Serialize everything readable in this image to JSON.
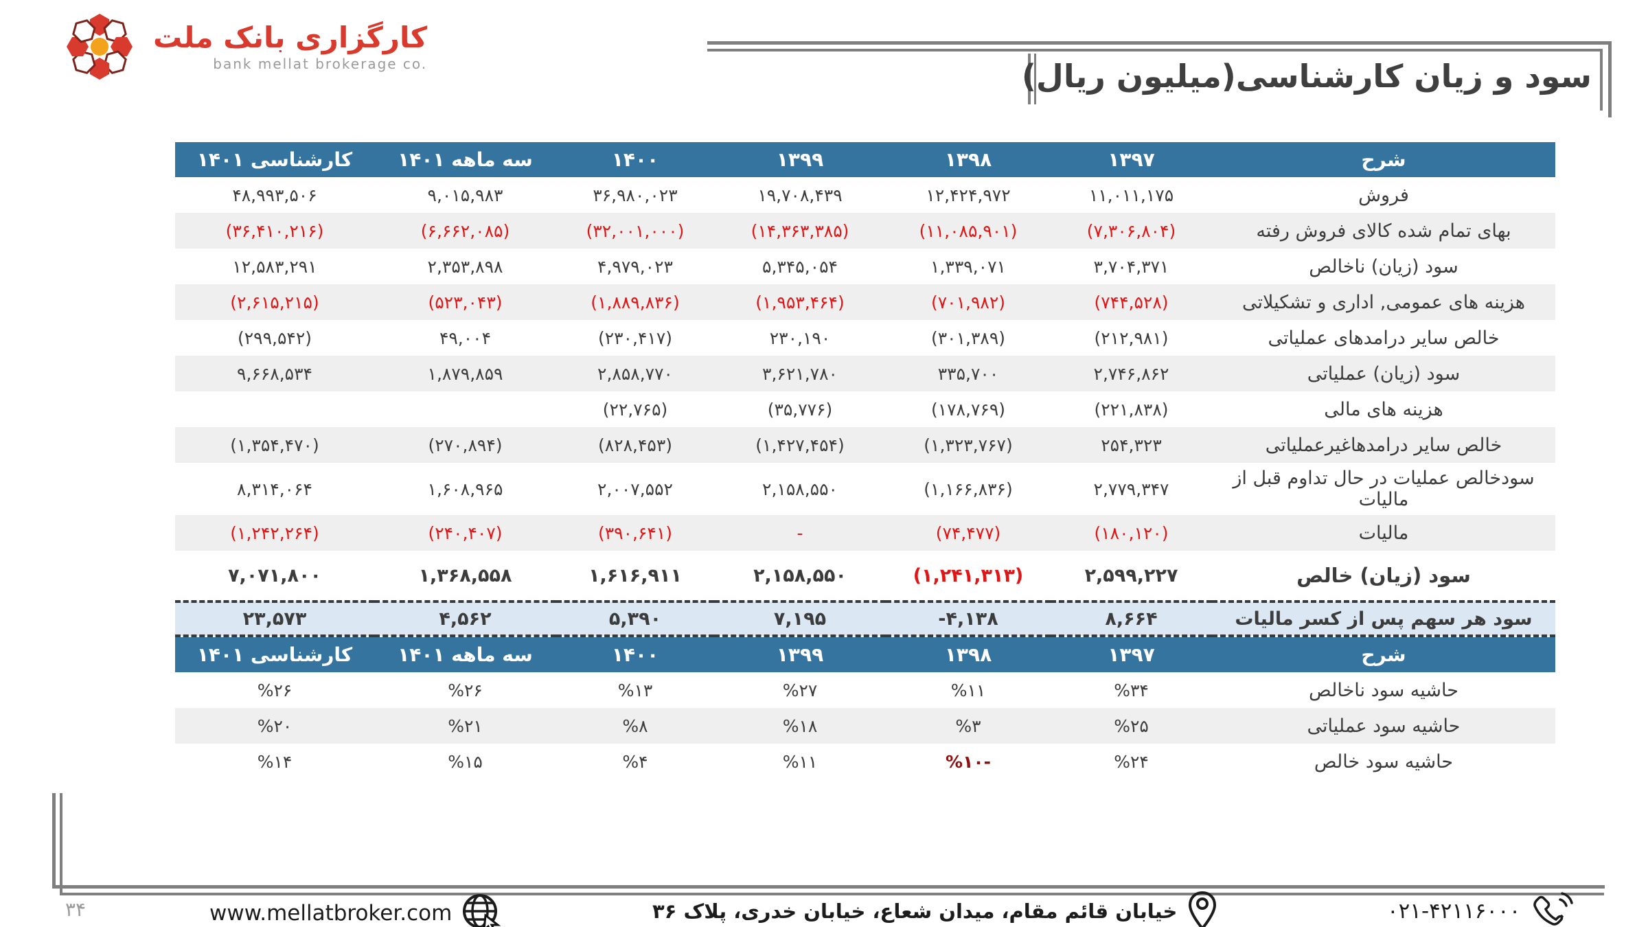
{
  "colors": {
    "header_bg": "#34749f",
    "stripe_bg": "#efefef",
    "eps_bg": "#dbe8f4",
    "red": "#e01515",
    "dark_red": "#8f1010",
    "frame_gray": "#7f7f7f",
    "brand_red": "#d93a2e",
    "logo_orange": "#f2a31b"
  },
  "header": {
    "logo_fa": "کارگزاری بانک ملت",
    "logo_en": "bank mellat brokerage co.",
    "title": "سود و زیان کارشناسی(میلیون ریال)"
  },
  "income_table": {
    "headers": [
      "شرح",
      "۱۳۹۷",
      "۱۳۹۸",
      "۱۳۹۹",
      "۱۴۰۰",
      "سه ماهه ۱۴۰۱",
      "کارشناسی ۱۴۰۱"
    ],
    "rows": [
      {
        "label": "فروش",
        "values": [
          "۱۱,۰۱۱,۱۷۵",
          "۱۲,۴۲۴,۹۷۲",
          "۱۹,۷۰۸,۴۳۹",
          "۳۶,۹۸۰,۰۲۳",
          "۹,۰۱۵,۹۸۳",
          "۴۸,۹۹۳,۵۰۶"
        ]
      },
      {
        "label": "بهای تمام شده کالای فروش رفته",
        "values": [
          "(۷,۳۰۶,۸۰۴)",
          "(۱۱,۰۸۵,۹۰۱)",
          "(۱۴,۳۶۳,۳۸۵)",
          "(۳۲,۰۰۱,۰۰۰)",
          "(۶,۶۶۲,۰۸۵)",
          "(۳۶,۴۱۰,۲۱۶)"
        ],
        "value_color": "red"
      },
      {
        "label": "سود (زیان) ناخالص",
        "values": [
          "۳,۷۰۴,۳۷۱",
          "۱,۳۳۹,۰۷۱",
          "۵,۳۴۵,۰۵۴",
          "۴,۹۷۹,۰۲۳",
          "۲,۳۵۳,۸۹۸",
          "۱۲,۵۸۳,۲۹۱"
        ]
      },
      {
        "label": "هزینه های عمومی, اداری و تشکیلاتی",
        "values": [
          "(۷۴۴,۵۲۸)",
          "(۷۰۱,۹۸۲)",
          "(۱,۹۵۳,۴۶۴)",
          "(۱,۸۸۹,۸۳۶)",
          "(۵۲۳,۰۴۳)",
          "(۲,۶۱۵,۲۱۵)"
        ],
        "value_color": "red"
      },
      {
        "label": "خالص سایر درامدهای  عملیاتی",
        "values": [
          "(۲۱۲,۹۸۱)",
          "(۳۰۱,۳۸۹)",
          "۲۳۰,۱۹۰",
          "(۲۳۰,۴۱۷)",
          "۴۹,۰۰۴",
          "(۲۹۹,۵۴۲)"
        ]
      },
      {
        "label": "سود (زیان) عملیاتی",
        "values": [
          "۲,۷۴۶,۸۶۲",
          "۳۳۵,۷۰۰",
          "۳,۶۲۱,۷۸۰",
          "۲,۸۵۸,۷۷۰",
          "۱,۸۷۹,۸۵۹",
          "۹,۶۶۸,۵۳۴"
        ]
      },
      {
        "label": "هزینه های مالی",
        "values": [
          "(۲۲۱,۸۳۸)",
          "(۱۷۸,۷۶۹)",
          "(۳۵,۷۷۶)",
          "(۲۲,۷۶۵)",
          "",
          ""
        ]
      },
      {
        "label": "خالص سایر درامدهاغیرعملیاتی",
        "values": [
          "۲۵۴,۳۲۳",
          "(۱,۳۲۳,۷۶۷)",
          "(۱,۴۲۷,۴۵۴)",
          "(۸۲۸,۴۵۳)",
          "(۲۷۰,۸۹۴)",
          "(۱,۳۵۴,۴۷۰)"
        ]
      },
      {
        "label": "سودخالص عملیات در حال تداوم قبل از مالیات",
        "values": [
          "۲,۷۷۹,۳۴۷",
          "(۱,۱۶۶,۸۳۶)",
          "۲,۱۵۸,۵۵۰",
          "۲,۰۰۷,۵۵۲",
          "۱,۶۰۸,۹۶۵",
          "۸,۳۱۴,۰۶۴"
        ],
        "row_class": "two-line"
      },
      {
        "label": "مالیات",
        "values": [
          "(۱۸۰,۱۲۰)",
          "(۷۴,۴۷۷)",
          "-",
          "(۳۹۰,۶۴۱)",
          "(۲۴۰,۴۰۷)",
          "(۱,۲۴۲,۲۶۴)"
        ],
        "value_color": "red"
      },
      {
        "label": "سود (زیان) خالص",
        "values": [
          "۲,۵۹۹,۲۲۷",
          "(۱,۲۴۱,۳۱۳)",
          "۲,۱۵۸,۵۵۰",
          "۱,۶۱۶,۹۱۱",
          "۱,۳۶۸,۵۵۸",
          "۷,۰۷۱,۸۰۰"
        ],
        "row_class": "bold-row",
        "red_cells": [
          1
        ]
      },
      {
        "label": "سود هر سهم پس از کسر مالیات",
        "values": [
          "۸,۶۶۴",
          "-۴,۱۳۸",
          "۷,۱۹۵",
          "۵,۳۹۰",
          "۴,۵۶۲",
          "۲۳,۵۷۳"
        ],
        "row_class": "eps-row"
      }
    ]
  },
  "margin_table": {
    "headers": [
      "شرح",
      "۱۳۹۷",
      "۱۳۹۸",
      "۱۳۹۹",
      "۱۴۰۰",
      "سه ماهه ۱۴۰۱",
      "کارشناسی ۱۴۰۱"
    ],
    "rows": [
      {
        "label": "حاشیه سود ناخالص",
        "values": [
          "%۳۴",
          "%۱۱",
          "%۲۷",
          "%۱۳",
          "%۲۶",
          "%۲۶"
        ]
      },
      {
        "label": "حاشیه سود عملیاتی",
        "values": [
          "%۲۵",
          "%۳",
          "%۱۸",
          "%۸",
          "%۲۱",
          "%۲۰"
        ]
      },
      {
        "label": "حاشیه سود خالص",
        "values": [
          "%۲۴",
          "%۱۰-",
          "%۱۱",
          "%۴",
          "%۱۵",
          "%۱۴"
        ],
        "darkred_cells": [
          1
        ]
      }
    ]
  },
  "footer": {
    "page_number": "۳۴",
    "website": "www.mellatbroker.com",
    "address": "خیابان قائم مقام، میدان شعاع، خیابان خدری، پلاک ۳۶",
    "phone": "۰۲۱-۴۲۱۱۶۰۰۰"
  }
}
